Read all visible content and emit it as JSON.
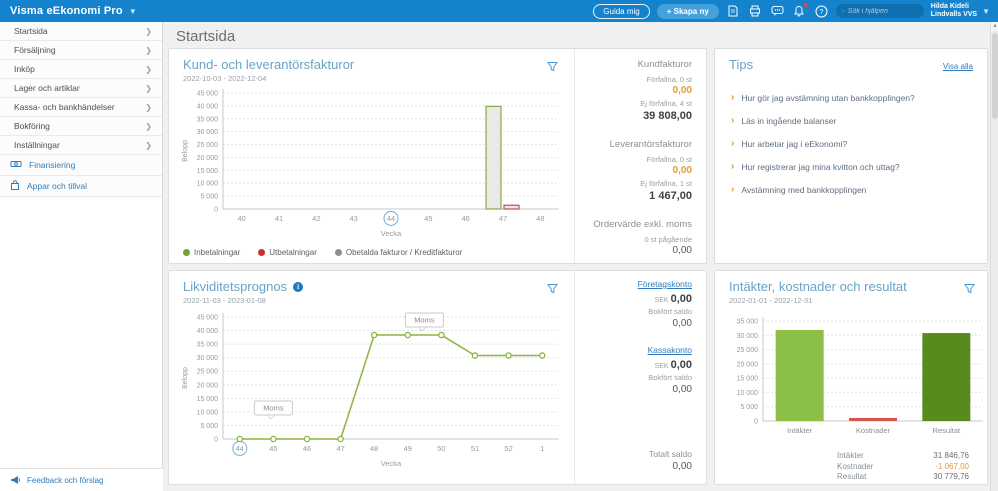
{
  "topbar": {
    "app_title": "Visma eEkonomi Pro",
    "guide_button": "Guida mig",
    "create_button": "+ Skapa ny",
    "search_placeholder": "Sök i hjälpen",
    "user_name": "Hilda Kideli",
    "user_company": "Lindvalls VVS"
  },
  "sidebar": {
    "items": [
      {
        "label": "Startsida"
      },
      {
        "label": "Försäljning"
      },
      {
        "label": "Inköp"
      },
      {
        "label": "Lager och artiklar"
      },
      {
        "label": "Kassa- och bankhändelser"
      },
      {
        "label": "Bokföring"
      },
      {
        "label": "Inställningar"
      }
    ],
    "tools": [
      {
        "label": "Finansiering",
        "icon": "money-icon"
      },
      {
        "label": "Appar och tillval",
        "icon": "bag-icon"
      }
    ],
    "feedback_label": "Feedback och förslag"
  },
  "page_title": "Startsida",
  "invoices_card": {
    "title": "Kund- och leverantörsfakturor",
    "date_range": "2022-10-03 - 2022-12-04",
    "summary": {
      "customer_header": "Kundfakturor",
      "customer_overdue_label": "Förfallna, 0 st",
      "customer_overdue_value": "0,00",
      "customer_open_label": "Ej förfallna, 4 st",
      "customer_open_value": "39 808,00",
      "supplier_header": "Leverantörsfakturor",
      "supplier_overdue_label": "Förfallna, 0 st",
      "supplier_overdue_value": "0,00",
      "supplier_open_label": "Ej förfallna, 1 st",
      "supplier_open_value": "1 467,00",
      "order_header": "Ordervärde exkl. moms",
      "order_count_label": "0 st pågående",
      "order_value": "0,00"
    }
  },
  "tips_card": {
    "title": "Tips",
    "show_all_label": "Visa alla",
    "items": [
      "Hur gör jag avstämning utan bankkopplingen?",
      "Läs in ingående balanser",
      "Hur arbetar jag i eEkonomi?",
      "Hur registrerar jag mina kvitton och uttag?",
      "Avstämning med bankkopplingen"
    ]
  },
  "liquidity_card": {
    "title": "Likviditetsprognos",
    "date_range": "2022-11-03 - 2023-01-08",
    "accounts": {
      "company_label": "Företagskonto",
      "currency": "SEK",
      "company_amount": "0,00",
      "company_booked_label": "Bokfört saldo",
      "company_booked_value": "0,00",
      "cash_label": "Kassakonto",
      "cash_amount": "0,00",
      "cash_booked_label": "Bokfört saldo",
      "cash_booked_value": "0,00",
      "total_label": "Totalt saldo",
      "total_value": "0,00"
    }
  },
  "result_card": {
    "title": "Intäkter, kostnader och resultat",
    "date_range": "2022-01-01 - 2022-12-31",
    "summary_rows": [
      {
        "label": "Intäkter",
        "value": "31 846,76",
        "color": "#6d6d6d"
      },
      {
        "label": "Kostnader",
        "value": "-1 067,00",
        "color": "#DE9B3C"
      },
      {
        "label": "Resultat",
        "value": "30 779,76",
        "color": "#6d6d6d"
      }
    ]
  },
  "chart_data": [
    {
      "id": "invoices",
      "type": "bar",
      "title": "Kund- och leverantörsfakturor",
      "xlabel": "Vecka",
      "ylabel": "Belopp",
      "ylim": [
        0,
        45000
      ],
      "ytick_step": 5000,
      "categories": [
        "40",
        "41",
        "42",
        "43",
        "44",
        "45",
        "46",
        "47",
        "48"
      ],
      "highlighted_category": "44",
      "series": [
        {
          "name": "Inbetalningar",
          "stroke": "#85AD3F",
          "fill": "#e9e9e9",
          "dot": "#6DA33C",
          "values": [
            0,
            0,
            0,
            0,
            0,
            0,
            0,
            39808,
            0
          ]
        },
        {
          "name": "Utbetalningar",
          "stroke": "#C0504D",
          "fill": "#efe7e6",
          "dot": "#C9302C",
          "values": [
            0,
            0,
            0,
            0,
            0,
            0,
            0,
            1467,
            0
          ]
        },
        {
          "name": "Obetalda fakturor / Kreditfakturor",
          "stroke": "#8A9095",
          "fill": "#e9e9e9",
          "dot": "#8A9095",
          "values": [
            0,
            0,
            0,
            0,
            0,
            0,
            0,
            0,
            0
          ]
        }
      ]
    },
    {
      "id": "liquidity",
      "type": "line",
      "title": "Likviditetsprognos",
      "xlabel": "Vecka",
      "ylabel": "Belopp",
      "ylim": [
        0,
        45000
      ],
      "ytick_step": 5000,
      "categories": [
        "44",
        "45",
        "46",
        "47",
        "48",
        "49",
        "50",
        "51",
        "52",
        "1"
      ],
      "highlighted_category": "44",
      "line_color": "#8CB43F",
      "values": [
        0,
        0,
        0,
        0,
        38341,
        38341,
        38341,
        30780,
        30780,
        30780
      ],
      "annotations": [
        {
          "label": "Moms",
          "index": 1
        },
        {
          "label": "Moms",
          "index": 6
        }
      ]
    },
    {
      "id": "result",
      "type": "bar",
      "title": "Intäkter, kostnader och resultat",
      "xlabel": "",
      "ylabel": "",
      "ylim": [
        0,
        35000
      ],
      "ytick_step": 5000,
      "categories": [
        "Intäkter",
        "Kostnader",
        "Resultat"
      ],
      "values": [
        31846.76,
        1067,
        30779.76
      ],
      "colors": [
        "#8CBF45",
        "#D9534F",
        "#588A1E"
      ]
    }
  ],
  "colors": {
    "topbar": "#1482CC",
    "accent_link": "#2D7DC0",
    "card_title": "#69A3C6",
    "warning_value": "#DE9B3C",
    "week_circle": "#74AFD6"
  }
}
